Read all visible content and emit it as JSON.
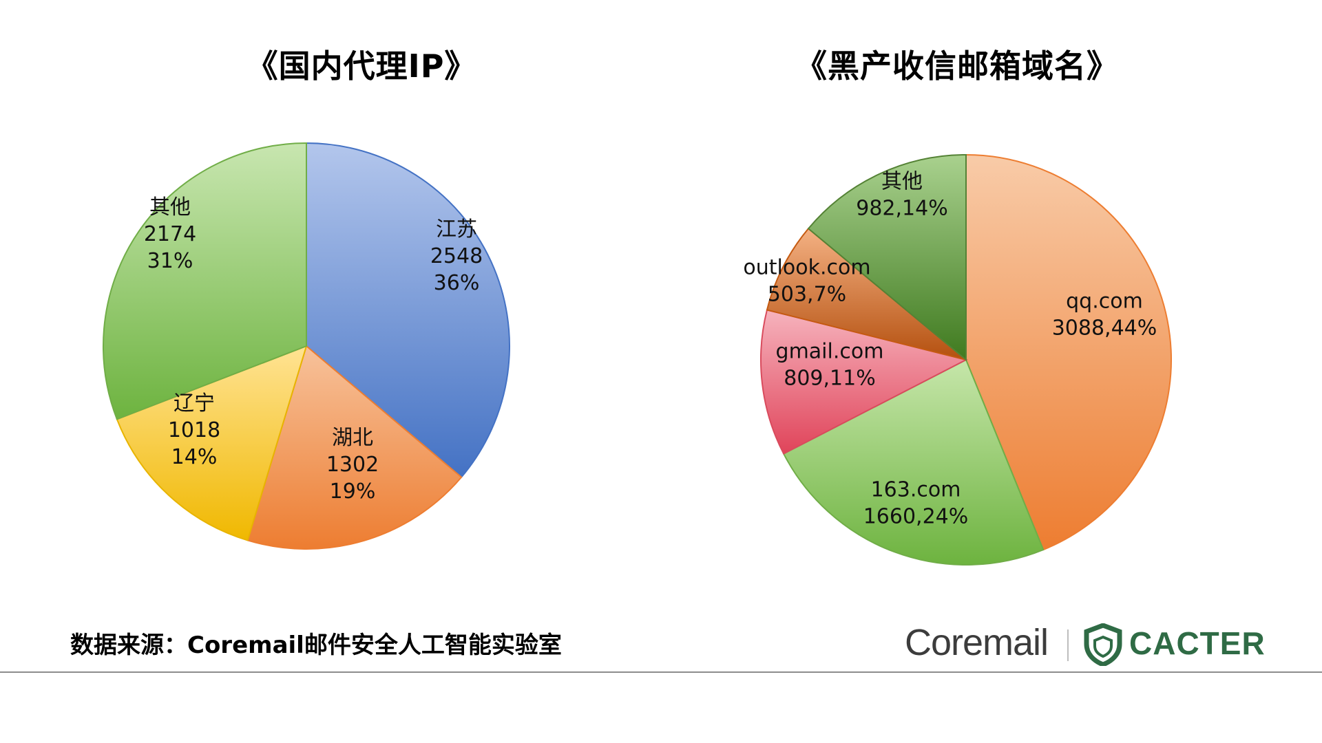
{
  "chart_data": [
    {
      "type": "pie",
      "title": "《国内代理IP》",
      "slices": [
        {
          "label": "江苏",
          "value": 2548,
          "percent": "36%",
          "color_light": "#b3c6ec",
          "color_dark": "#4472c4",
          "stroke": "#4472c4"
        },
        {
          "label": "湖北",
          "value": 1302,
          "percent": "19%",
          "color_light": "#f7c29b",
          "color_dark": "#ed7d31",
          "stroke": "#ed7d31"
        },
        {
          "label": "辽宁",
          "value": 1018,
          "percent": "14%",
          "color_light": "#ffe394",
          "color_dark": "#f0b800",
          "stroke": "#e8b400"
        },
        {
          "label": "其他",
          "value": 2174,
          "percent": "31%",
          "color_light": "#c8e6b0",
          "color_dark": "#6db33f",
          "stroke": "#70ad47"
        }
      ]
    },
    {
      "type": "pie",
      "title": "《黑产收信邮箱域名》",
      "slices": [
        {
          "label": "qq.com",
          "value": 3088,
          "percent": "44%",
          "color_light": "#f8cba8",
          "color_dark": "#ed7d31",
          "stroke": "#ed7d31"
        },
        {
          "label": "163.com",
          "value": 1660,
          "percent": "24%",
          "color_light": "#c6e6aa",
          "color_dark": "#6db33f",
          "stroke": "#70ad47"
        },
        {
          "label": "gmail.com",
          "value": 809,
          "percent": "11%",
          "color_light": "#f6b3bd",
          "color_dark": "#e0445a",
          "stroke": "#d94b5d"
        },
        {
          "label": "outlook.com",
          "value": 503,
          "percent": "7%",
          "color_light": "#f4b183",
          "color_dark": "#b4500f",
          "stroke": "#c55a11"
        },
        {
          "label": "其他",
          "value": 982,
          "percent": "14%",
          "color_light": "#a9d18e",
          "color_dark": "#3f7a1f",
          "stroke": "#548235"
        }
      ]
    }
  ],
  "footer": {
    "source": "数据来源：Coremail邮件安全人工智能实验室",
    "logo_coremail": "Coremail",
    "logo_cacter": "CACTER",
    "cacter_color": "#2f6b45"
  }
}
